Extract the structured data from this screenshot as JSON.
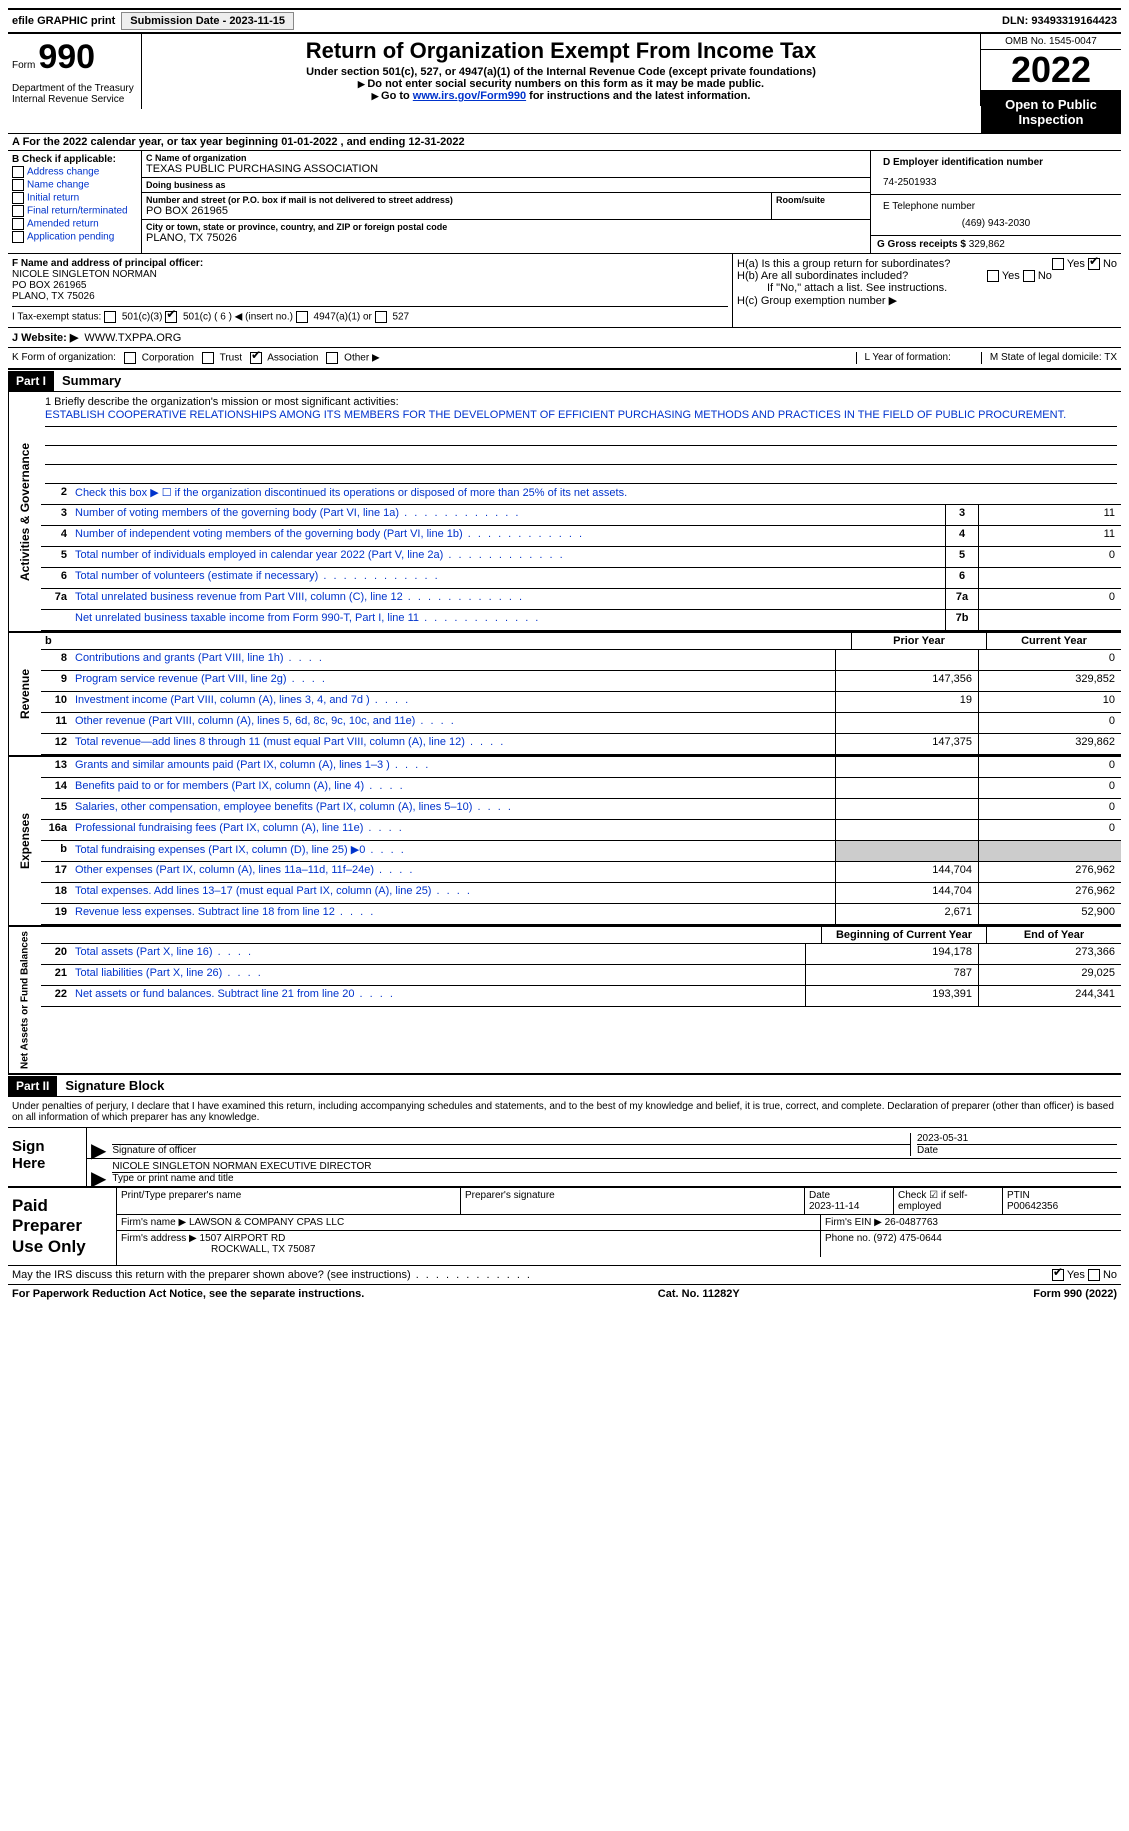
{
  "topbar": {
    "efile": "efile GRAPHIC print",
    "submission_label": "Submission Date - 2023-11-15",
    "dln": "DLN: 93493319164423"
  },
  "header": {
    "form_word": "Form",
    "form_num": "990",
    "dept": "Department of the Treasury Internal Revenue Service",
    "title": "Return of Organization Exempt From Income Tax",
    "sub1": "Under section 501(c), 527, or 4947(a)(1) of the Internal Revenue Code (except private foundations)",
    "sub2": "Do not enter social security numbers on this form as it may be made public.",
    "sub3_pre": "Go to ",
    "sub3_link": "www.irs.gov/Form990",
    "sub3_post": " for instructions and the latest information.",
    "omb": "OMB No. 1545-0047",
    "year": "2022",
    "open": "Open to Public Inspection"
  },
  "line_a": "A For the 2022 calendar year, or tax year beginning 01-01-2022   , and ending 12-31-2022",
  "box_b": {
    "title": "B Check if applicable:",
    "items": [
      "Address change",
      "Name change",
      "Initial return",
      "Final return/terminated",
      "Amended return",
      "Application pending"
    ]
  },
  "box_c": {
    "name_lbl": "C Name of organization",
    "name": "TEXAS PUBLIC PURCHASING ASSOCIATION",
    "dba_lbl": "Doing business as",
    "dba": "",
    "addr_lbl": "Number and street (or P.O. box if mail is not delivered to street address)",
    "room_lbl": "Room/suite",
    "addr": "PO BOX 261965",
    "city_lbl": "City or town, state or province, country, and ZIP or foreign postal code",
    "city": "PLANO, TX  75026"
  },
  "box_d": {
    "lbl": "D Employer identification number",
    "val": "74-2501933"
  },
  "box_e": {
    "lbl": "E Telephone number",
    "val": "(469) 943-2030"
  },
  "box_g": {
    "lbl": "G Gross receipts $",
    "val": "329,862"
  },
  "box_f": {
    "lbl": "F Name and address of principal officer:",
    "name": "NICOLE SINGLETON NORMAN",
    "addr1": "PO BOX 261965",
    "addr2": "PLANO, TX  75026"
  },
  "box_h": {
    "ha": "H(a)  Is this a group return for subordinates?",
    "hb": "H(b)  Are all subordinates included?",
    "hb_note": "If \"No,\" attach a list. See instructions.",
    "hc": "H(c)  Group exemption number ▶",
    "yes": "Yes",
    "no": "No"
  },
  "box_i": {
    "lbl": "I  Tax-exempt status:",
    "c3": "501(c)(3)",
    "c": "501(c) ( 6 ) ◀ (insert no.)",
    "a1": "4947(a)(1) or",
    "s527": "527"
  },
  "box_j": {
    "lbl": "J  Website: ▶",
    "val": "WWW.TXPPA.ORG"
  },
  "box_k": {
    "lbl": "K Form of organization:",
    "corp": "Corporation",
    "trust": "Trust",
    "assoc": "Association",
    "other": "Other ▶"
  },
  "box_l": "L Year of formation:",
  "box_m": "M State of legal domicile: TX",
  "part1": {
    "hdr": "Part I",
    "title": "Summary"
  },
  "mission": {
    "lbl": "1  Briefly describe the organization's mission or most significant activities:",
    "text": "ESTABLISH COOPERATIVE RELATIONSHIPS AMONG ITS MEMBERS FOR THE DEVELOPMENT OF EFFICIENT PURCHASING METHODS AND PRACTICES IN THE FIELD OF PUBLIC PROCUREMENT."
  },
  "summary": {
    "l2": "Check this box ▶ ☐ if the organization discontinued its operations or disposed of more than 25% of its net assets.",
    "rows_ag": [
      {
        "n": "3",
        "d": "Number of voting members of the governing body (Part VI, line 1a)",
        "box": "3",
        "v": "11"
      },
      {
        "n": "4",
        "d": "Number of independent voting members of the governing body (Part VI, line 1b)",
        "box": "4",
        "v": "11"
      },
      {
        "n": "5",
        "d": "Total number of individuals employed in calendar year 2022 (Part V, line 2a)",
        "box": "5",
        "v": "0"
      },
      {
        "n": "6",
        "d": "Total number of volunteers (estimate if necessary)",
        "box": "6",
        "v": ""
      },
      {
        "n": "7a",
        "d": "Total unrelated business revenue from Part VIII, column (C), line 12",
        "box": "7a",
        "v": "0"
      },
      {
        "n": "",
        "d": "Net unrelated business taxable income from Form 990-T, Part I, line 11",
        "box": "7b",
        "v": ""
      }
    ],
    "hdr_prior": "Prior Year",
    "hdr_curr": "Current Year",
    "rev": [
      {
        "n": "8",
        "d": "Contributions and grants (Part VIII, line 1h)",
        "p": "",
        "c": "0"
      },
      {
        "n": "9",
        "d": "Program service revenue (Part VIII, line 2g)",
        "p": "147,356",
        "c": "329,852"
      },
      {
        "n": "10",
        "d": "Investment income (Part VIII, column (A), lines 3, 4, and 7d )",
        "p": "19",
        "c": "10"
      },
      {
        "n": "11",
        "d": "Other revenue (Part VIII, column (A), lines 5, 6d, 8c, 9c, 10c, and 11e)",
        "p": "",
        "c": "0"
      },
      {
        "n": "12",
        "d": "Total revenue—add lines 8 through 11 (must equal Part VIII, column (A), line 12)",
        "p": "147,375",
        "c": "329,862"
      }
    ],
    "exp": [
      {
        "n": "13",
        "d": "Grants and similar amounts paid (Part IX, column (A), lines 1–3 )",
        "p": "",
        "c": "0"
      },
      {
        "n": "14",
        "d": "Benefits paid to or for members (Part IX, column (A), line 4)",
        "p": "",
        "c": "0"
      },
      {
        "n": "15",
        "d": "Salaries, other compensation, employee benefits (Part IX, column (A), lines 5–10)",
        "p": "",
        "c": "0"
      },
      {
        "n": "16a",
        "d": "Professional fundraising fees (Part IX, column (A), line 11e)",
        "p": "",
        "c": "0"
      },
      {
        "n": "b",
        "d": "Total fundraising expenses (Part IX, column (D), line 25) ▶0",
        "p": "GRAY",
        "c": "GRAY"
      },
      {
        "n": "17",
        "d": "Other expenses (Part IX, column (A), lines 11a–11d, 11f–24e)",
        "p": "144,704",
        "c": "276,962"
      },
      {
        "n": "18",
        "d": "Total expenses. Add lines 13–17 (must equal Part IX, column (A), line 25)",
        "p": "144,704",
        "c": "276,962"
      },
      {
        "n": "19",
        "d": "Revenue less expenses. Subtract line 18 from line 12",
        "p": "2,671",
        "c": "52,900"
      }
    ],
    "hdr_beg": "Beginning of Current Year",
    "hdr_end": "End of Year",
    "net": [
      {
        "n": "20",
        "d": "Total assets (Part X, line 16)",
        "p": "194,178",
        "c": "273,366"
      },
      {
        "n": "21",
        "d": "Total liabilities (Part X, line 26)",
        "p": "787",
        "c": "29,025"
      },
      {
        "n": "22",
        "d": "Net assets or fund balances. Subtract line 21 from line 20",
        "p": "193,391",
        "c": "244,341"
      }
    ]
  },
  "vtabs": {
    "ag": "Activities & Governance",
    "rev": "Revenue",
    "exp": "Expenses",
    "net": "Net Assets or Fund Balances"
  },
  "part2": {
    "hdr": "Part II",
    "title": "Signature Block"
  },
  "sig": {
    "decl": "Under penalties of perjury, I declare that I have examined this return, including accompanying schedules and statements, and to the best of my knowledge and belief, it is true, correct, and complete. Declaration of preparer (other than officer) is based on all information of which preparer has any knowledge.",
    "sign_here": "Sign Here",
    "sig_officer": "Signature of officer",
    "date": "2023-05-31",
    "date_lbl": "Date",
    "name": "NICOLE SINGLETON NORMAN  EXECUTIVE DIRECTOR",
    "name_lbl": "Type or print name and title"
  },
  "prep": {
    "title": "Paid Preparer Use Only",
    "r1": {
      "c1": "Print/Type preparer's name",
      "c2": "Preparer's signature",
      "c3": "Date",
      "c3v": "2023-11-14",
      "c4": "Check ☑ if self-employed",
      "c5": "PTIN",
      "c5v": "P00642356"
    },
    "r2": {
      "c1": "Firm's name    ▶",
      "c1v": "LAWSON & COMPANY CPAS LLC",
      "c2": "Firm's EIN ▶",
      "c2v": "26-0487763"
    },
    "r3": {
      "c1": "Firm's address ▶",
      "c1v": "1507 AIRPORT RD",
      "c1v2": "ROCKWALL, TX  75087",
      "c2": "Phone no.",
      "c2v": "(972) 475-0644"
    }
  },
  "footer": {
    "discuss": "May the IRS discuss this return with the preparer shown above? (see instructions)",
    "yes": "Yes",
    "no": "No",
    "paperwork": "For Paperwork Reduction Act Notice, see the separate instructions.",
    "cat": "Cat. No. 11282Y",
    "form": "Form 990 (2022)"
  }
}
